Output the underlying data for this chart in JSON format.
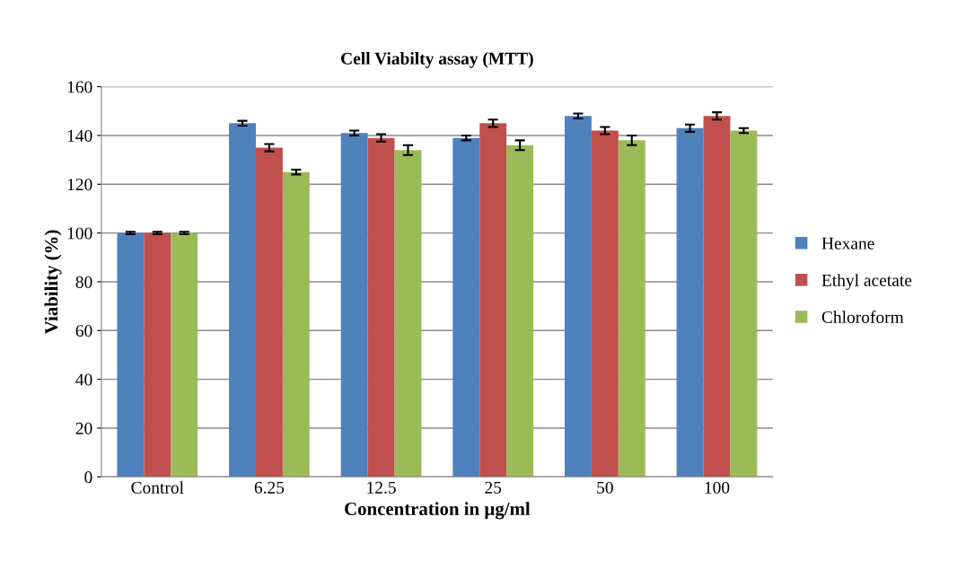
{
  "chart_data": {
    "type": "bar",
    "title": "Cell Viabilty assay (MTT)",
    "xlabel": "Concentration in µg/ml",
    "ylabel": "Viability (%)",
    "categories": [
      "Control",
      "6.25",
      "12.5",
      "25",
      "50",
      "100"
    ],
    "series": [
      {
        "name": "Hexane",
        "color": "#4f81bd",
        "values": [
          100,
          145,
          141,
          139,
          148,
          143
        ],
        "errors": [
          0.5,
          1,
          1,
          1,
          1,
          1.5
        ]
      },
      {
        "name": "Ethyl acetate",
        "color": "#c0504d",
        "values": [
          100,
          135,
          139,
          145,
          142,
          148
        ],
        "errors": [
          0.5,
          1.5,
          1.5,
          1.5,
          1.5,
          1.5
        ]
      },
      {
        "name": "Chloroform",
        "color": "#9bbb59",
        "values": [
          100,
          125,
          134,
          136,
          138,
          142
        ],
        "errors": [
          0.5,
          1,
          2,
          2,
          2,
          1
        ]
      }
    ],
    "ylim": [
      0,
      160
    ],
    "yticks": [
      0,
      20,
      40,
      60,
      80,
      100,
      120,
      140,
      160
    ],
    "grid": "y",
    "legend": "right"
  }
}
